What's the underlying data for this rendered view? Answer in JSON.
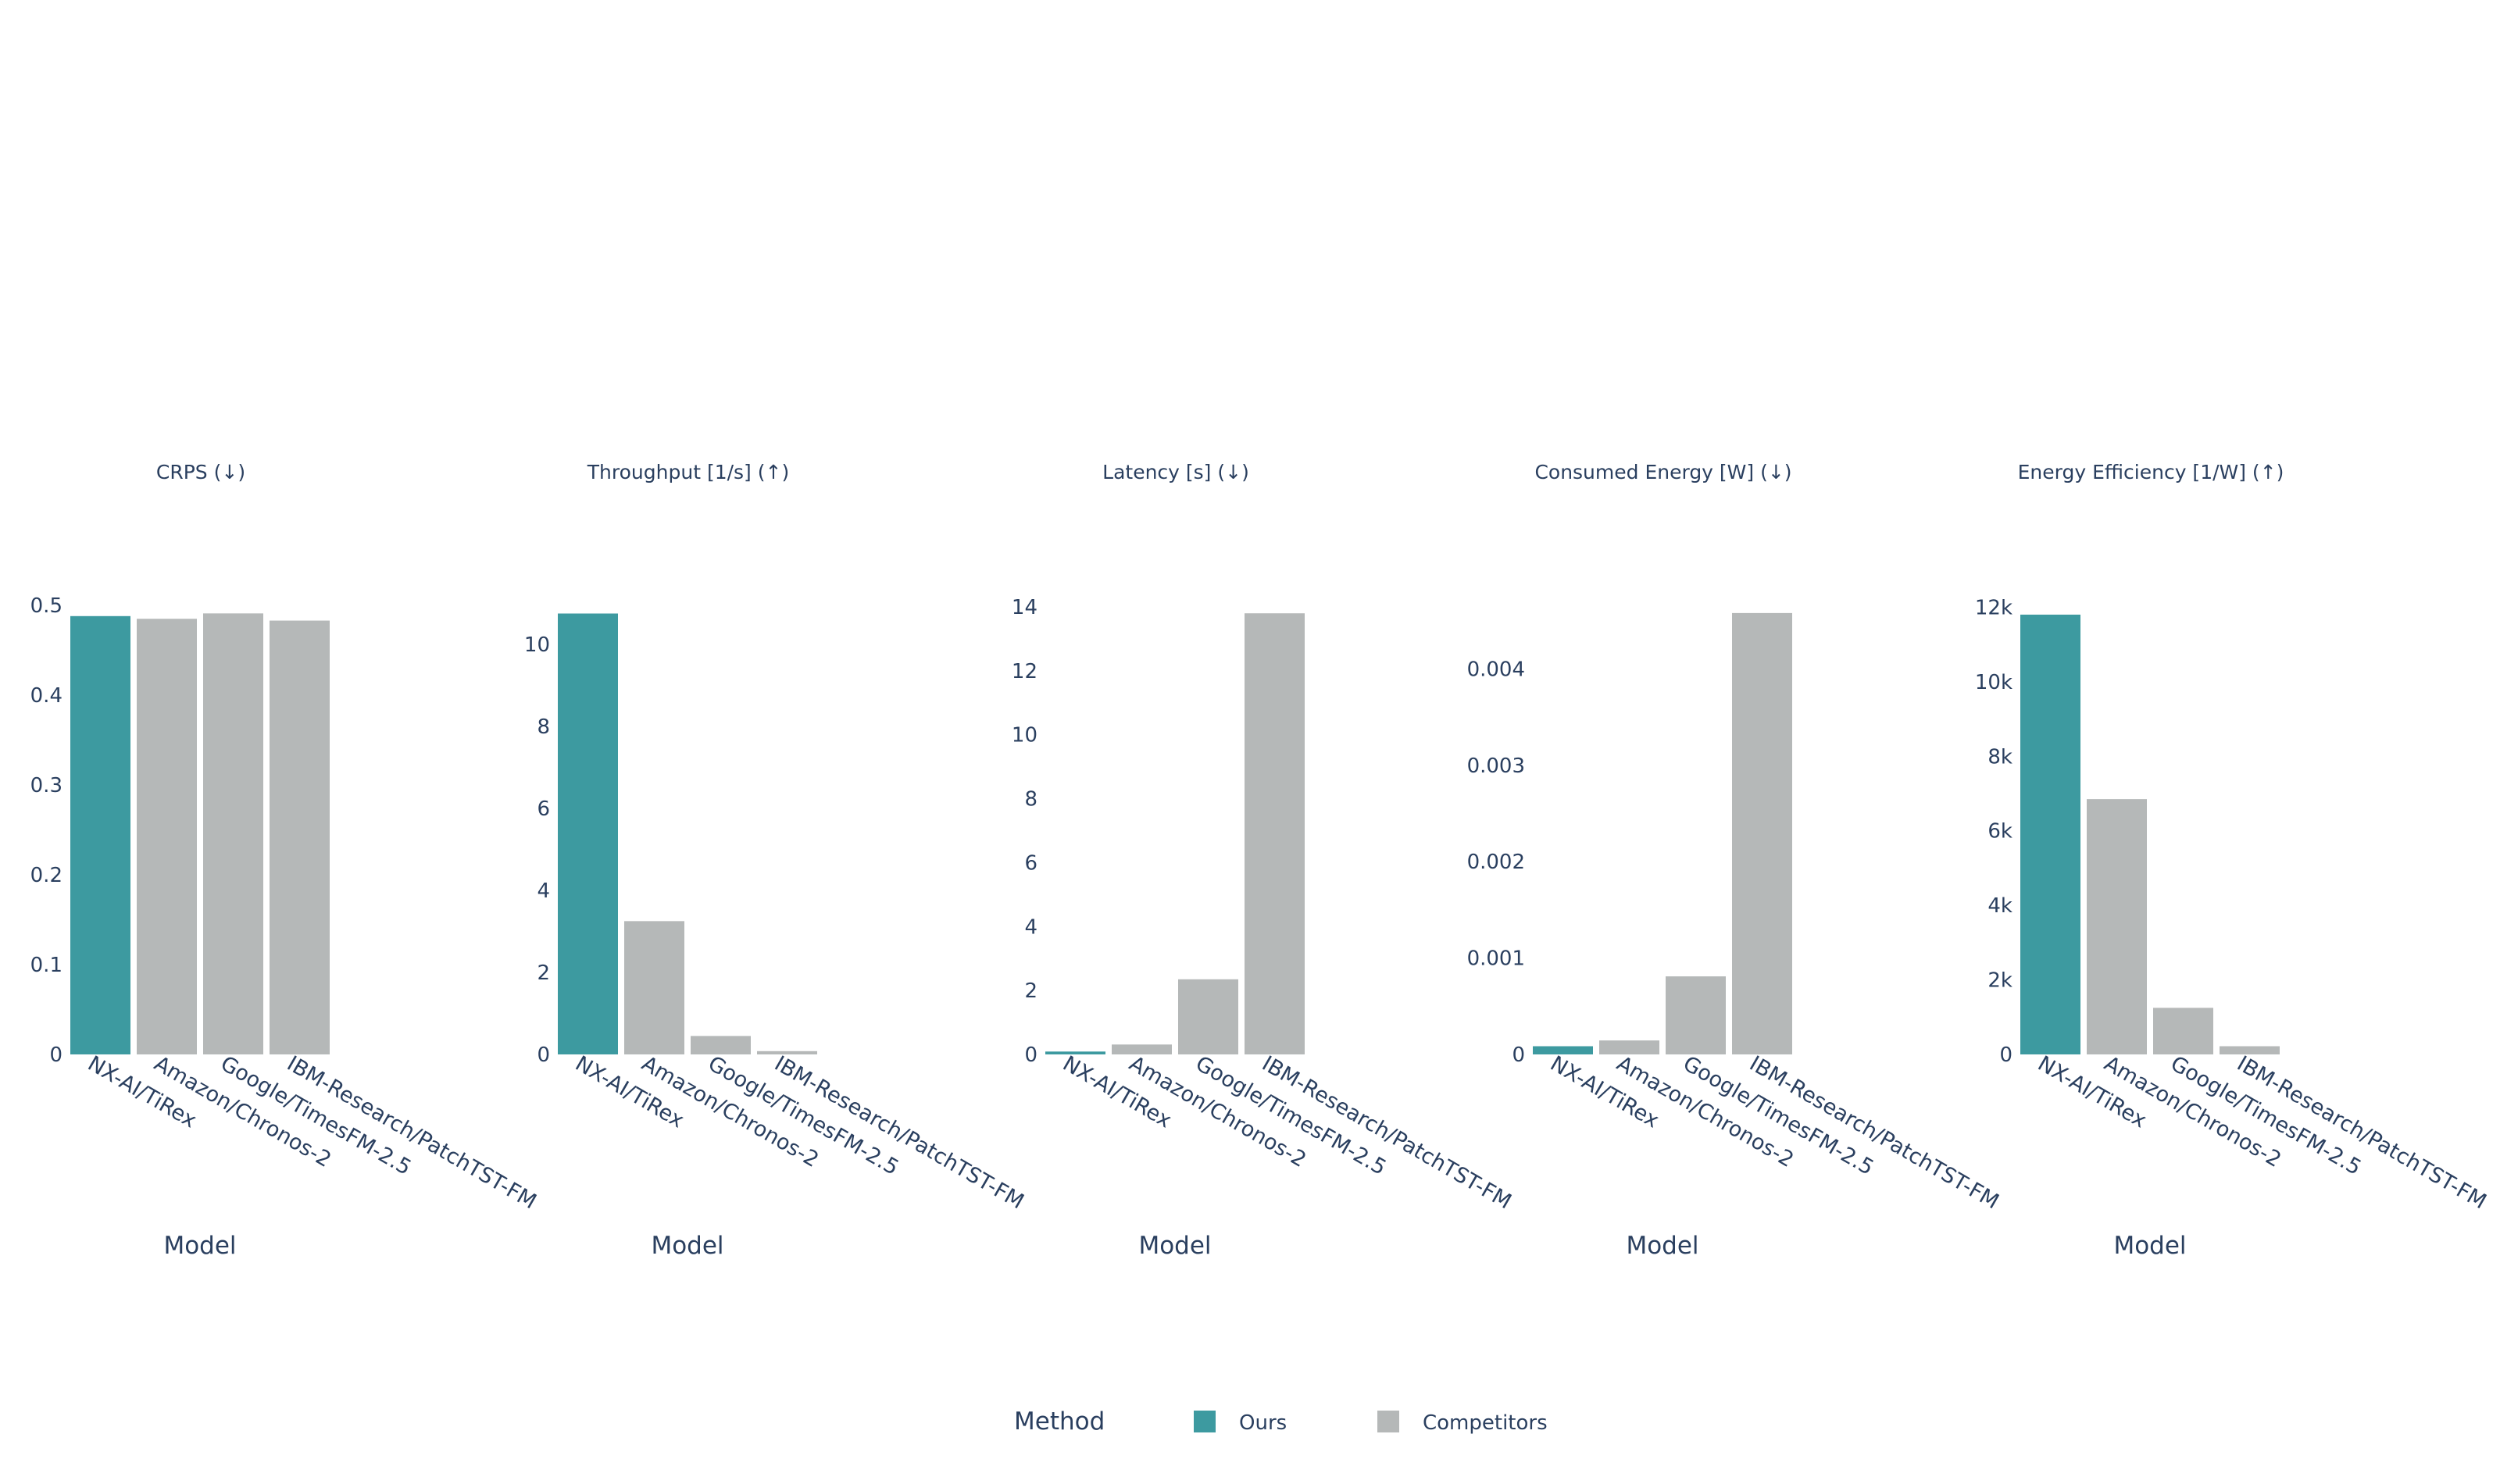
{
  "chart_data": [
    {
      "type": "bar",
      "title": "CRPS (↓)",
      "xlabel": "Model",
      "categories": [
        "NX-AI/TiRex",
        "Amazon/Chronos-2",
        "Google/TimesFM-2.5",
        "IBM-Research/PatchTST-FM"
      ],
      "values": [
        0.488,
        0.485,
        0.491,
        0.483
      ],
      "methods": [
        "Ours",
        "Competitors",
        "Competitors",
        "Competitors"
      ],
      "ylim": [
        0,
        0.5
      ],
      "yticks": [
        0,
        0.1,
        0.2,
        0.3,
        0.4,
        0.5
      ],
      "yticklabels": [
        "0",
        "0.1",
        "0.2",
        "0.3",
        "0.4",
        "0.5"
      ]
    },
    {
      "type": "bar",
      "title": "Throughput [1/s] (↑)",
      "xlabel": "Model",
      "categories": [
        "NX-AI/TiRex",
        "Amazon/Chronos-2",
        "Google/TimesFM-2.5",
        "IBM-Research/PatchTST-FM"
      ],
      "values": [
        10.75,
        3.25,
        0.45,
        0.08
      ],
      "methods": [
        "Ours",
        "Competitors",
        "Competitors",
        "Competitors"
      ],
      "ylim": [
        0,
        10.95
      ],
      "yticks": [
        0,
        2,
        4,
        6,
        8,
        10
      ],
      "yticklabels": [
        "0",
        "2",
        "4",
        "6",
        "8",
        "10"
      ]
    },
    {
      "type": "bar",
      "title": "Latency [s] (↓)",
      "xlabel": "Model",
      "categories": [
        "NX-AI/TiRex",
        "Amazon/Chronos-2",
        "Google/TimesFM-2.5",
        "IBM-Research/PatchTST-FM"
      ],
      "values": [
        0.09,
        0.31,
        2.35,
        13.8
      ],
      "methods": [
        "Ours",
        "Competitors",
        "Competitors",
        "Competitors"
      ],
      "ylim": [
        0,
        14.05
      ],
      "yticks": [
        0,
        2,
        4,
        6,
        8,
        10,
        12,
        14
      ],
      "yticklabels": [
        "0",
        "2",
        "4",
        "6",
        "8",
        "10",
        "12",
        "14"
      ]
    },
    {
      "type": "bar",
      "title": "Consumed Energy [W] (↓)",
      "xlabel": "Model",
      "categories": [
        "NX-AI/TiRex",
        "Amazon/Chronos-2",
        "Google/TimesFM-2.5",
        "IBM-Research/PatchTST-FM"
      ],
      "values": [
        8.5e-05,
        0.000145,
        0.00081,
        0.00458
      ],
      "methods": [
        "Ours",
        "Competitors",
        "Competitors",
        "Competitors"
      ],
      "ylim": [
        0,
        0.00466
      ],
      "yticks": [
        0,
        0.001,
        0.002,
        0.003,
        0.004
      ],
      "yticklabels": [
        "0",
        "0.001",
        "0.002",
        "0.003",
        "0.004"
      ]
    },
    {
      "type": "bar",
      "title": "Energy Efficiency [1/W] (↑)",
      "xlabel": "Model",
      "categories": [
        "NX-AI/TiRex",
        "Amazon/Chronos-2",
        "Google/TimesFM-2.5",
        "IBM-Research/PatchTST-FM"
      ],
      "values": [
        11800,
        6850,
        1250,
        220
      ],
      "methods": [
        "Ours",
        "Competitors",
        "Competitors",
        "Competitors"
      ],
      "ylim": [
        0,
        12050
      ],
      "yticks": [
        0,
        2000,
        4000,
        6000,
        8000,
        10000,
        12000
      ],
      "yticklabels": [
        "0",
        "2k",
        "4k",
        "6k",
        "8k",
        "10k",
        "12k"
      ]
    }
  ],
  "legend": {
    "title": "Method",
    "placement": "bottom-center",
    "items": [
      {
        "label": "Ours",
        "color": "#3d9aa0"
      },
      {
        "label": "Competitors",
        "color": "#b5b8b8"
      }
    ]
  },
  "colors": {
    "Ours": "#3d9aa0",
    "Competitors": "#b5b8b8",
    "text": "#2a3f5f"
  }
}
